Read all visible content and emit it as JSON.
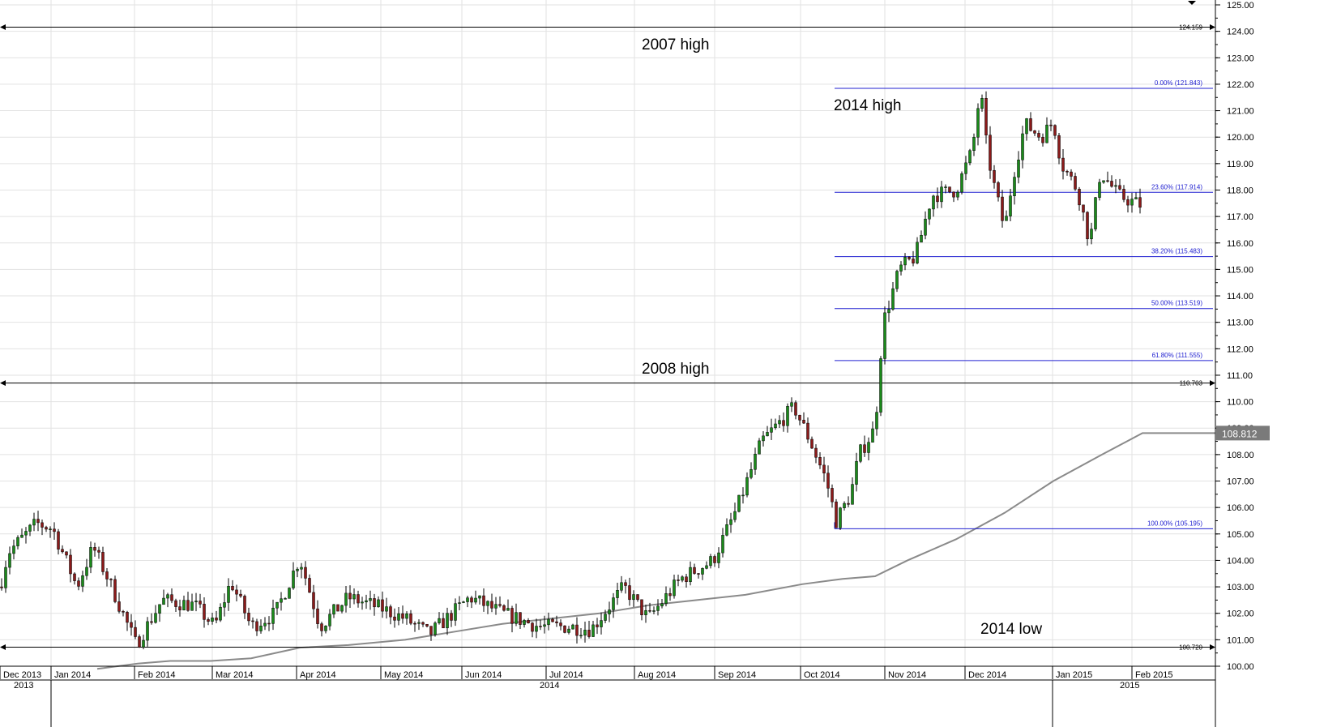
{
  "chart_data": {
    "type": "candlestick",
    "title": "",
    "xlabel": "",
    "ylabel": "",
    "ylim": [
      99.9,
      125.0
    ],
    "y_ticks": [
      100.0,
      101.0,
      102.0,
      103.0,
      104.0,
      105.0,
      106.0,
      107.0,
      108.0,
      109.0,
      110.0,
      111.0,
      112.0,
      113.0,
      114.0,
      115.0,
      116.0,
      117.0,
      118.0,
      119.0,
      120.0,
      121.0,
      122.0,
      123.0,
      124.0,
      125.0
    ],
    "x_months": [
      "Dec 2013",
      "Jan 2014",
      "Feb 2014",
      "Mar 2014",
      "Apr 2014",
      "May 2014",
      "Jun 2014",
      "Jul 2014",
      "Aug 2014",
      "Sep 2014",
      "Oct 2014",
      "Nov 2014",
      "Dec 2014",
      "Jan 2015",
      "Feb 2015"
    ],
    "x_years": [
      "2013",
      "2014",
      "2015"
    ],
    "grid": true,
    "current_price": "108.812",
    "horizontal_levels": [
      {
        "label": "2007 high",
        "value": 124.159,
        "value_label": "124.159"
      },
      {
        "label": "2008 high",
        "value": 110.703,
        "value_label": "110.703"
      },
      {
        "label": "2014 low",
        "value": 100.72,
        "value_label": "100.720"
      }
    ],
    "fibonacci": [
      {
        "label": "0.00% (121.843)",
        "value": 121.843
      },
      {
        "label": "23.60% (117.914)",
        "value": 117.914
      },
      {
        "label": "38.20% (115.483)",
        "value": 115.483
      },
      {
        "label": "50.00% (113.519)",
        "value": 113.519
      },
      {
        "label": "61.80% (111.555)",
        "value": 111.555
      },
      {
        "label": "100.00% (105.195)",
        "value": 105.195
      }
    ],
    "annotations": [
      "2007 high",
      "2014 high",
      "2008 high",
      "2014 low"
    ],
    "key_points": [
      [
        0,
        103.0
      ],
      [
        10,
        104.3
      ],
      [
        45,
        105.4
      ],
      [
        65,
        105.2
      ],
      [
        95,
        103.0
      ],
      [
        115,
        104.5
      ],
      [
        135,
        103.2
      ],
      [
        168,
        100.8
      ],
      [
        200,
        102.5
      ],
      [
        240,
        102.3
      ],
      [
        265,
        101.5
      ],
      [
        285,
        103.2
      ],
      [
        310,
        101.5
      ],
      [
        340,
        102.0
      ],
      [
        370,
        104.1
      ],
      [
        395,
        101.5
      ],
      [
        430,
        102.6
      ],
      [
        470,
        102.2
      ],
      [
        500,
        101.8
      ],
      [
        530,
        101.2
      ],
      [
        580,
        102.6
      ],
      [
        620,
        102.0
      ],
      [
        665,
        101.5
      ],
      [
        700,
        101.5
      ],
      [
        730,
        101.4
      ],
      [
        770,
        103.0
      ],
      [
        800,
        101.8
      ],
      [
        840,
        103.3
      ],
      [
        880,
        104.0
      ],
      [
        910,
        106.0
      ],
      [
        940,
        108.5
      ],
      [
        980,
        109.8
      ],
      [
        1000,
        108.5
      ],
      [
        1020,
        107.0
      ],
      [
        1032,
        105.5
      ],
      [
        1050,
        106.5
      ],
      [
        1060,
        108.0
      ],
      [
        1080,
        109.0
      ],
      [
        1086,
        111.5
      ],
      [
        1090,
        113.0
      ],
      [
        1110,
        115.0
      ],
      [
        1130,
        115.5
      ],
      [
        1150,
        117.8
      ],
      [
        1180,
        118.0
      ],
      [
        1200,
        119.5
      ],
      [
        1210,
        121.843
      ],
      [
        1218,
        119.5
      ],
      [
        1228,
        118.0
      ],
      [
        1240,
        116.5
      ],
      [
        1250,
        118.5
      ],
      [
        1265,
        120.5
      ],
      [
        1285,
        120.0
      ],
      [
        1300,
        120.6
      ],
      [
        1310,
        119.0
      ],
      [
        1330,
        118.0
      ],
      [
        1345,
        116.0
      ],
      [
        1358,
        118.7
      ],
      [
        1380,
        117.8
      ],
      [
        1395,
        117.6
      ],
      [
        1410,
        117.4
      ]
    ],
    "ma_points": [
      [
        120,
        99.9
      ],
      [
        170,
        100.1
      ],
      [
        210,
        100.2
      ],
      [
        260,
        100.2
      ],
      [
        310,
        100.3
      ],
      [
        370,
        100.7
      ],
      [
        430,
        100.8
      ],
      [
        500,
        101.0
      ],
      [
        560,
        101.3
      ],
      [
        620,
        101.6
      ],
      [
        680,
        101.8
      ],
      [
        740,
        102.0
      ],
      [
        800,
        102.3
      ],
      [
        860,
        102.5
      ],
      [
        920,
        102.7
      ],
      [
        990,
        103.1
      ],
      [
        1040,
        103.3
      ],
      [
        1080,
        103.4
      ],
      [
        1120,
        104.0
      ],
      [
        1180,
        104.8
      ],
      [
        1240,
        105.8
      ],
      [
        1300,
        107.0
      ],
      [
        1360,
        108.0
      ],
      [
        1410,
        108.812
      ],
      [
        1500,
        108.812
      ]
    ]
  }
}
